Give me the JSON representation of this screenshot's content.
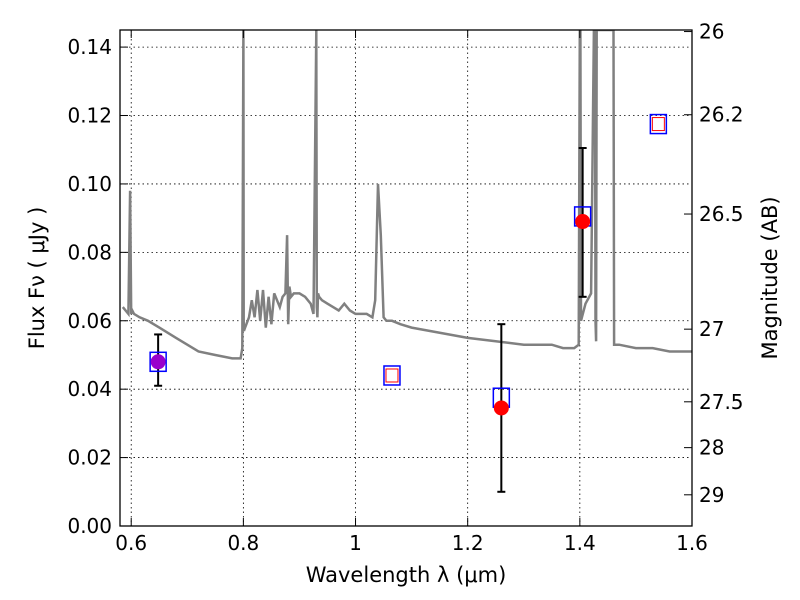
{
  "chart_data": {
    "type": "scatter",
    "title": "",
    "xlabel": "Wavelength  λ (μm)",
    "ylabel": "Flux  Fν  ( μJy )",
    "y2label": "Magnitude (AB)",
    "xlim": [
      0.58,
      1.6
    ],
    "ylim": [
      0.0,
      0.145
    ],
    "x_ticks": [
      0.6,
      0.8,
      1.0,
      1.2,
      1.4,
      1.6
    ],
    "x_tick_labels": [
      "0.6",
      "0.8",
      "1",
      "1.2",
      "1.4",
      "1.6"
    ],
    "y_ticks": [
      0.0,
      0.02,
      0.04,
      0.06,
      0.08,
      0.1,
      0.12,
      0.14
    ],
    "y_tick_labels": [
      "0.00",
      "0.02",
      "0.04",
      "0.06",
      "0.08",
      "0.10",
      "0.12",
      "0.14"
    ],
    "mag_ticks": [
      {
        "label": "26",
        "mag": 26.0
      },
      {
        "label": "26.2",
        "mag": 26.2
      },
      {
        "label": "26.5",
        "mag": 26.5
      },
      {
        "label": "27",
        "mag": 27.0
      },
      {
        "label": "27.5",
        "mag": 27.5
      },
      {
        "label": "28",
        "mag": 28.0
      },
      {
        "label": "29",
        "mag": 29.0
      }
    ],
    "grid": true,
    "colors": {
      "sed": "#808080",
      "observed": "#ff0000",
      "model": "#0000ff",
      "model_inner": "#ff0000",
      "errorbar": "#000000",
      "overlap": "#9900cc"
    },
    "sed_series": {
      "x": [
        0.585,
        0.595,
        0.598,
        0.6,
        0.602,
        0.605,
        0.615,
        0.63,
        0.65,
        0.68,
        0.7,
        0.72,
        0.75,
        0.78,
        0.795,
        0.798,
        0.8,
        0.8005,
        0.801,
        0.803,
        0.81,
        0.815,
        0.82,
        0.825,
        0.83,
        0.835,
        0.84,
        0.845,
        0.85,
        0.855,
        0.86,
        0.865,
        0.87,
        0.875,
        0.878,
        0.88,
        0.882,
        0.885,
        0.89,
        0.9,
        0.91,
        0.92,
        0.925,
        0.93,
        0.931,
        0.932,
        0.933,
        0.935,
        0.94,
        0.95,
        0.96,
        0.97,
        0.98,
        0.99,
        1.0,
        1.01,
        1.02,
        1.03,
        1.035,
        1.04,
        1.045,
        1.05,
        1.055,
        1.06,
        1.065,
        1.08,
        1.1,
        1.2,
        1.25,
        1.3,
        1.35,
        1.37,
        1.39,
        1.398,
        1.4,
        1.401,
        1.402,
        1.41,
        1.42,
        1.425,
        1.427,
        1.428,
        1.429,
        1.43,
        1.432,
        1.435,
        1.44,
        1.45,
        1.455,
        1.46,
        1.461,
        1.47,
        1.5,
        1.53,
        1.56,
        1.58,
        1.59,
        1.6
      ],
      "y": [
        0.064,
        0.062,
        0.098,
        0.062,
        0.063,
        0.062,
        0.061,
        0.06,
        0.058,
        0.055,
        0.053,
        0.051,
        0.05,
        0.049,
        0.049,
        0.052,
        0.145,
        0.06,
        0.057,
        0.058,
        0.061,
        0.066,
        0.061,
        0.069,
        0.06,
        0.069,
        0.058,
        0.067,
        0.059,
        0.068,
        0.066,
        0.064,
        0.067,
        0.068,
        0.085,
        0.059,
        0.07,
        0.067,
        0.068,
        0.068,
        0.067,
        0.065,
        0.062,
        0.145,
        0.064,
        0.061,
        0.068,
        0.067,
        0.066,
        0.065,
        0.064,
        0.063,
        0.065,
        0.063,
        0.062,
        0.062,
        0.062,
        0.061,
        0.066,
        0.1,
        0.085,
        0.061,
        0.06,
        0.06,
        0.06,
        0.059,
        0.058,
        0.055,
        0.054,
        0.053,
        0.053,
        0.052,
        0.052,
        0.053,
        0.145,
        0.145,
        0.06,
        0.065,
        0.068,
        0.145,
        0.145,
        0.06,
        0.054,
        0.145,
        0.145,
        0.145,
        0.145,
        0.145,
        0.145,
        0.145,
        0.053,
        0.053,
        0.052,
        0.052,
        0.051,
        0.051,
        0.051,
        0.051
      ]
    },
    "photometry": [
      {
        "x": 0.648,
        "model": 0.048,
        "obs": 0.048,
        "err_low": 0.041,
        "err_high": 0.056
      },
      {
        "x": 1.065,
        "model": 0.044,
        "obs": null,
        "err_low": null,
        "err_high": null
      },
      {
        "x": 1.26,
        "model": 0.0375,
        "obs": 0.0345,
        "err_low": 0.01,
        "err_high": 0.059
      },
      {
        "x": 1.405,
        "model": 0.0905,
        "obs": 0.089,
        "err_low": 0.067,
        "err_high": 0.1105
      },
      {
        "x": 1.54,
        "model": 0.1175,
        "obs": null,
        "err_low": null,
        "err_high": null
      }
    ]
  }
}
